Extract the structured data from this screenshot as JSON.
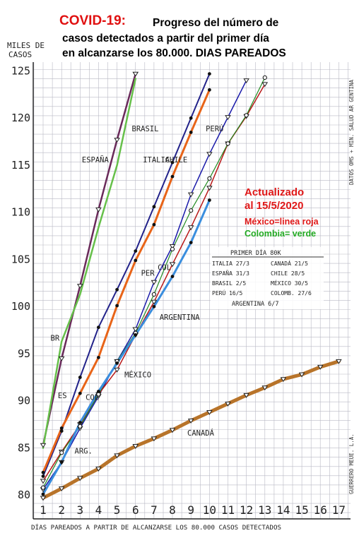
{
  "chart_data": {
    "type": "line",
    "title_prefix": "COVID-19:",
    "title_lines": [
      "Progreso del número de",
      "casos detectados a partir del primer día",
      "en alcanzarse los 80.000. DIAS PAREADOS"
    ],
    "ylabel_lines": [
      "MILES DE",
      "CASOS"
    ],
    "xlabel": "DÍAS PAREADOS A PARTIR DE ALCANZARSE LOS 80.000 CASOS DETECTADOS",
    "xlim": [
      1,
      17
    ],
    "ylim": [
      80,
      125
    ],
    "x_ticks": [
      1,
      2,
      3,
      4,
      5,
      6,
      7,
      8,
      9,
      10,
      11,
      12,
      13,
      14,
      15,
      16,
      17
    ],
    "y_ticks": [
      80,
      85,
      90,
      95,
      100,
      105,
      110,
      115,
      120,
      125
    ],
    "grid": true,
    "side_note": "DATOS OMS + MIN. SALUD AR GENTINA",
    "signature": "GUERRERO MEUE. L.A.",
    "update_lines": [
      "Actualizado",
      "al 15/5/2020"
    ],
    "legend_notes": [
      {
        "text": "México=linea roja",
        "color": "#e01818"
      },
      {
        "text": "Colombia= verde",
        "color": "#22aa22"
      }
    ],
    "first_day_box": {
      "title": "PRIMER DÍA 80K",
      "left": [
        "ITALIA 27/3",
        "ESPAÑA 31/3",
        "BRASIL 2/5",
        "PERÚ 16/5"
      ],
      "right": [
        "CANADÁ 21/5",
        "CHILE 28/5",
        "MÉXICO 30/5",
        "COLOMB. 27/6"
      ],
      "footer": "ARGENTINA 6/7"
    },
    "series": [
      {
        "name": "ESPAÑA",
        "color": "#6a2a5a",
        "width": 2.5,
        "marker": "tri",
        "x": [
          1,
          2,
          3,
          4,
          5,
          6
        ],
        "y": [
          85.2,
          94.4,
          102.1,
          110.2,
          117.6,
          124.6
        ]
      },
      {
        "name": "BRASIL",
        "color": "#66c04a",
        "width": 2.5,
        "marker": "none",
        "x": [
          1,
          2,
          3,
          4,
          5,
          6
        ],
        "y": [
          84.9,
          96.2,
          101.2,
          108.3,
          114.9,
          124.1
        ]
      },
      {
        "name": "ITALIA",
        "color": "#22228a",
        "width": 2,
        "marker": "dot",
        "x": [
          1,
          2,
          3,
          4,
          5,
          6,
          7,
          8,
          9,
          10
        ],
        "y": [
          81.9,
          86.7,
          92.4,
          97.7,
          101.7,
          105.8,
          110.5,
          115.2,
          119.9,
          124.6
        ]
      },
      {
        "name": "CHILE",
        "color": "#e86418",
        "width": 3,
        "marker": "dot",
        "x": [
          1,
          2,
          3,
          4,
          5,
          6,
          7,
          8,
          9,
          10
        ],
        "y": [
          82.3,
          87.0,
          90.7,
          94.5,
          100.0,
          104.8,
          108.6,
          113.7,
          118.4,
          122.9
        ]
      },
      {
        "name": "PERÚ",
        "color": "#1a1aaa",
        "width": 1.5,
        "marker": "tri",
        "x": [
          1,
          2,
          3,
          4,
          5,
          6,
          7,
          8,
          9,
          10,
          11,
          12
        ],
        "y": [
          80.5,
          83.4,
          87.0,
          90.4,
          94.1,
          97.5,
          102.5,
          106.3,
          111.8,
          116.1,
          120.0,
          123.9
        ]
      },
      {
        "name": "MÉXICO",
        "color": "#b81818",
        "width": 1.5,
        "marker": "tri",
        "x": [
          1,
          2,
          3,
          4,
          5,
          6,
          7,
          8,
          9,
          10,
          11,
          12,
          13
        ],
        "y": [
          81.4,
          84.5,
          87.4,
          90.6,
          93.2,
          96.9,
          100.4,
          104.4,
          108.3,
          112.5,
          117.2,
          120.1,
          123.5
        ]
      },
      {
        "name": "COLOMBIA",
        "color": "#208a20",
        "width": 1.2,
        "marker": "circle",
        "x": [
          1,
          2,
          3,
          4,
          5,
          6,
          7,
          8,
          9,
          10,
          11,
          12,
          13
        ],
        "y": [
          80.7,
          84.4,
          87.2,
          90.6,
          94.1,
          97.1,
          101.2,
          106.0,
          110.1,
          113.5,
          117.2,
          120.2,
          124.2
        ]
      },
      {
        "name": "ARGENTINA",
        "color": "#3a8ede",
        "width": 3,
        "marker": "dot",
        "x": [
          1,
          2,
          3,
          4,
          5,
          6,
          7,
          8,
          9,
          10
        ],
        "y": [
          80.0,
          83.4,
          87.6,
          90.9,
          93.9,
          96.9,
          99.9,
          103.1,
          106.7,
          111.2
        ]
      },
      {
        "name": "CANADÁ",
        "color": "#b8742a",
        "width": 5,
        "marker": "tri",
        "x": [
          1,
          2,
          3,
          4,
          5,
          6,
          7,
          8,
          9,
          10,
          11,
          12,
          13,
          14,
          15,
          16,
          17
        ],
        "y": [
          79.6,
          80.6,
          81.7,
          82.7,
          84.1,
          85.1,
          85.9,
          86.8,
          87.8,
          88.7,
          89.6,
          90.5,
          91.3,
          92.2,
          92.7,
          93.5,
          94.1
        ]
      }
    ],
    "labels": [
      {
        "text": "ESPAÑA",
        "x": 3.1,
        "y": 115.2
      },
      {
        "text": "BRASIL",
        "x": 5.8,
        "y": 118.5
      },
      {
        "text": "ITALIA",
        "x": 6.4,
        "y": 115.2
      },
      {
        "text": "CHILE",
        "x": 7.6,
        "y": 115.2
      },
      {
        "text": "PERÚ",
        "x": 9.8,
        "y": 118.5
      },
      {
        "text": "ARGENTINA",
        "x": 7.3,
        "y": 98.5
      },
      {
        "text": "MÉXICO",
        "x": 5.4,
        "y": 92.4
      },
      {
        "text": "CANADÁ",
        "x": 8.8,
        "y": 86.2
      },
      {
        "text": "BR",
        "x": 1.4,
        "y": 96.3
      },
      {
        "text": "ES",
        "x": 1.8,
        "y": 90.2
      },
      {
        "text": "COL",
        "x": 3.3,
        "y": 90.0
      },
      {
        "text": "ARG.",
        "x": 2.7,
        "y": 84.3
      },
      {
        "text": "PER",
        "x": 6.3,
        "y": 103.2
      },
      {
        "text": "COL",
        "x": 7.2,
        "y": 103.8
      }
    ]
  }
}
